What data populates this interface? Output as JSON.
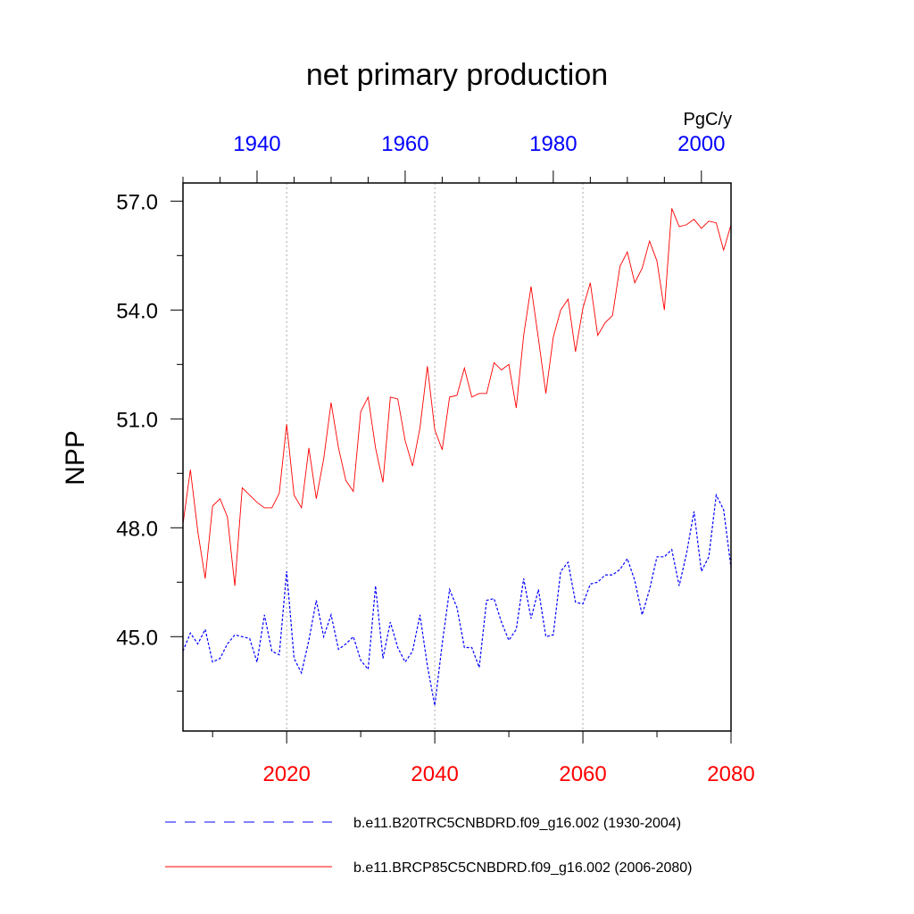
{
  "chart_data": {
    "type": "line",
    "title": "net primary production",
    "units": "PgC/y",
    "ylabel": "NPP",
    "ylim": [
      42.4,
      57.5
    ],
    "y_ticks": [
      "45.0",
      "48.0",
      "51.0",
      "54.0",
      "57.0"
    ],
    "y_tick_values": [
      45,
      48,
      51,
      54,
      57
    ],
    "bottom_axis": {
      "xlim": [
        2006,
        2080
      ],
      "tick_labels": [
        "2020",
        "2040",
        "2060",
        "2080"
      ],
      "tick_values": [
        2020,
        2040,
        2060,
        2080
      ],
      "color": "#ff0000"
    },
    "top_axis": {
      "xlim": [
        1930,
        2004
      ],
      "tick_labels": [
        "1940",
        "1960",
        "1980",
        "2000"
      ],
      "tick_values": [
        1940,
        1960,
        1980,
        2000
      ],
      "color": "#0000ff"
    },
    "grid": "vertical dotted at bottom-axis major ticks",
    "legend_placement": "bottom",
    "series": [
      {
        "name": "b.e11.B20TRC5CNBDRD.f09_g16.002 (1930-2004)",
        "color": "#0000ff",
        "dash": "dashed",
        "axis": "top",
        "x_start": 1930,
        "values": [
          44.6,
          45.1,
          44.8,
          45.2,
          44.3,
          44.4,
          44.8,
          45.05,
          45.0,
          44.95,
          44.3,
          45.6,
          44.6,
          44.5,
          46.8,
          44.4,
          44.0,
          44.9,
          46.0,
          45.0,
          45.6,
          44.65,
          44.8,
          45.0,
          44.35,
          44.1,
          46.4,
          44.4,
          45.4,
          44.7,
          44.3,
          44.6,
          45.6,
          44.2,
          43.1,
          44.8,
          46.3,
          45.8,
          44.7,
          44.7,
          44.15,
          46.0,
          46.05,
          45.4,
          44.9,
          45.2,
          46.6,
          45.5,
          46.3,
          45.0,
          45.05,
          46.8,
          47.05,
          45.95,
          45.9,
          46.45,
          46.5,
          46.7,
          46.7,
          46.85,
          47.15,
          46.55,
          45.6,
          46.3,
          47.2,
          47.2,
          47.4,
          46.4,
          47.3,
          48.45,
          46.8,
          47.2,
          48.9,
          48.5,
          46.9
        ]
      },
      {
        "name": "b.e11.BRCP85C5CNBDRD.f09_g16.002 (2006-2080)",
        "color": "#ff0000",
        "dash": "solid",
        "axis": "bottom",
        "x_start": 2006,
        "values": [
          48.1,
          49.6,
          47.9,
          46.6,
          48.6,
          48.8,
          48.3,
          46.4,
          49.1,
          48.9,
          48.7,
          48.55,
          48.55,
          48.95,
          50.85,
          48.9,
          48.55,
          50.2,
          48.8,
          49.9,
          51.45,
          50.2,
          49.3,
          49.0,
          51.2,
          51.6,
          50.2,
          49.25,
          51.6,
          51.55,
          50.4,
          49.7,
          50.75,
          52.45,
          50.7,
          50.15,
          51.6,
          51.65,
          52.4,
          51.6,
          51.7,
          51.7,
          52.55,
          52.35,
          52.5,
          51.3,
          53.3,
          54.65,
          53.2,
          51.7,
          53.25,
          54.0,
          54.3,
          52.85,
          54.05,
          54.75,
          53.3,
          53.65,
          53.85,
          55.2,
          55.6,
          54.75,
          55.15,
          55.9,
          55.35,
          54.0,
          56.8,
          56.3,
          56.35,
          56.5,
          56.25,
          56.45,
          56.4,
          55.65,
          56.35
        ]
      }
    ],
    "legend": [
      {
        "label": "b.e11.B20TRC5CNBDRD.f09_g16.002 (1930-2004)",
        "color": "#0000ff",
        "dash": "dashed"
      },
      {
        "label": "b.e11.BRCP85C5CNBDRD.f09_g16.002 (2006-2080)",
        "color": "#ff0000",
        "dash": "solid"
      }
    ]
  }
}
